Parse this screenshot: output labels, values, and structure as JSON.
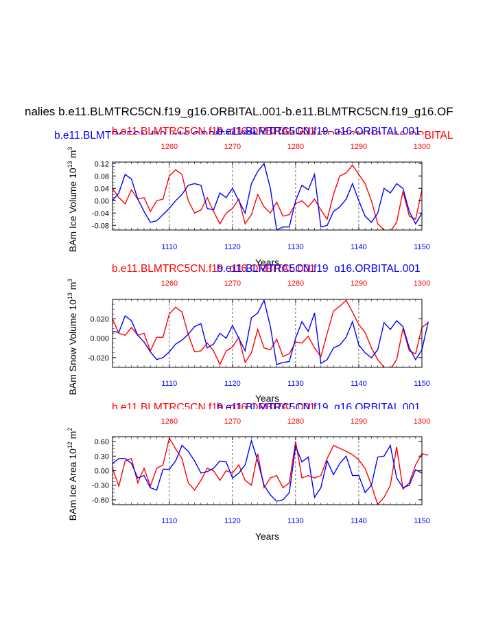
{
  "main_title": "nalies b.e11.BLMTRC5CN.f19_g16.ORBITAL.001-b.e11.BLMTRC5CN.f19_g16.OF",
  "super_title": {
    "blue": "b.e11.BLMTRC5CN.f19_g16.ORBITAL.001",
    "red": "b.e11.BLMTRC5CN.f19_g16.ORBITAL"
  },
  "colors": {
    "red_series": "#ff0000",
    "blue_series": "#0000ff",
    "axis": "#000000"
  },
  "chart_data": [
    {
      "type": "line",
      "title_red": "b.e11.BLMTRC5CN.f19_g16.ORBITAL.001",
      "title_blue": "b.e11.BLMTRC5CN.f19_g16.ORBITAL.001",
      "ylabel": "BAm Ice Volume 10",
      "ylabel_sup": "13",
      "ylabel_unit": "m",
      "ylabel_unit_sup": "3",
      "xlabel": "Years",
      "ylim": [
        -0.095,
        0.125
      ],
      "yticks": [
        -0.08,
        -0.04,
        0.0,
        0.04,
        0.08,
        0.12
      ],
      "ytick_labels": [
        "-0.08",
        "-0.04",
        "0.00",
        "0.04",
        "0.08",
        "0.12"
      ],
      "x_bottom": {
        "range": [
          1101,
          1150
        ],
        "ticks": [
          1110,
          1120,
          1130,
          1140,
          1150
        ]
      },
      "x_top": {
        "range": [
          1251,
          1300
        ],
        "ticks": [
          1260,
          1270,
          1280,
          1290,
          1300
        ]
      },
      "series": [
        {
          "color": "red",
          "axis": "top",
          "start": 1251,
          "values": [
            0.04,
            0.01,
            -0.01,
            0.035,
            0.005,
            0.01,
            -0.035,
            0.0,
            0.005,
            0.08,
            0.1,
            0.085,
            0.0,
            -0.04,
            -0.03,
            0.01,
            -0.035,
            -0.075,
            -0.04,
            -0.025,
            0.005,
            -0.075,
            -0.045,
            0.02,
            -0.02,
            -0.04,
            -0.005,
            -0.05,
            -0.045,
            -0.01,
            0.0,
            -0.02,
            0.005,
            -0.03,
            -0.06,
            0.02,
            0.08,
            0.09,
            0.115,
            0.085,
            0.055,
            0.0,
            -0.075,
            -0.095,
            -0.1,
            -0.07,
            0.03,
            -0.05,
            -0.06,
            0.035
          ]
        },
        {
          "color": "blue",
          "axis": "bottom",
          "start": 1101,
          "values": [
            0.0,
            0.025,
            0.085,
            0.07,
            0.005,
            -0.035,
            -0.07,
            -0.065,
            -0.045,
            -0.025,
            0.0,
            0.02,
            0.05,
            0.055,
            0.05,
            -0.025,
            -0.03,
            0.025,
            0.01,
            0.04,
            0.0,
            -0.04,
            0.055,
            0.095,
            0.12,
            0.04,
            -0.095,
            -0.085,
            -0.085,
            0.0,
            0.05,
            0.035,
            0.085,
            -0.085,
            -0.08,
            -0.035,
            -0.02,
            0.005,
            0.055,
            0.0,
            -0.05,
            -0.07,
            -0.04,
            0.04,
            0.025,
            0.055,
            0.04,
            -0.035,
            -0.075,
            -0.04
          ]
        }
      ]
    },
    {
      "type": "line",
      "title_red": "b.e11.BLMTRC5CN.f19_g16.ORBITAL.001",
      "title_blue": "b.e11.BLMTRC5CN.f19_g16.ORBITAL.001",
      "ylabel": "BAm Snow Volume 10",
      "ylabel_sup": "13",
      "ylabel_unit": "m",
      "ylabel_unit_sup": "3",
      "xlabel": "Years",
      "ylim": [
        -0.03,
        0.04
      ],
      "yticks": [
        -0.02,
        0.0,
        0.02
      ],
      "ytick_labels": [
        "-0.020",
        "0.000",
        "0.020"
      ],
      "x_bottom": {
        "range": [
          1101,
          1150
        ],
        "ticks": [
          1110,
          1120,
          1130,
          1140,
          1150
        ]
      },
      "x_top": {
        "range": [
          1251,
          1300
        ],
        "ticks": [
          1260,
          1270,
          1280,
          1290,
          1300
        ]
      },
      "series": [
        {
          "color": "red",
          "axis": "top",
          "start": 1251,
          "values": [
            0.02,
            0.005,
            0.003,
            0.011,
            0.003,
            0.005,
            -0.013,
            0.001,
            0.001,
            0.025,
            0.032,
            0.027,
            0.004,
            -0.014,
            -0.013,
            -0.005,
            -0.013,
            -0.027,
            -0.013,
            -0.009,
            0.001,
            -0.025,
            -0.015,
            0.009,
            -0.01,
            -0.012,
            -0.001,
            -0.019,
            -0.016,
            -0.004,
            -0.005,
            0.002,
            -0.01,
            -0.019,
            0.005,
            0.028,
            0.033,
            0.039,
            0.027,
            0.014,
            0.006,
            -0.01,
            -0.022,
            -0.03,
            -0.032,
            -0.022,
            0.01,
            -0.013,
            -0.016,
            0.011,
            0.016
          ]
        },
        {
          "color": "blue",
          "axis": "bottom",
          "start": 1101,
          "values": [
            0.007,
            0.006,
            0.023,
            0.018,
            0.003,
            -0.004,
            -0.014,
            -0.022,
            -0.02,
            -0.014,
            -0.006,
            -0.002,
            0.004,
            0.012,
            0.015,
            -0.01,
            -0.006,
            0.005,
            0.0,
            0.013,
            0.0,
            -0.013,
            0.021,
            0.026,
            0.039,
            0.012,
            -0.027,
            -0.025,
            -0.024,
            0.0,
            0.017,
            0.007,
            0.026,
            -0.026,
            -0.022,
            -0.01,
            -0.007,
            0.001,
            0.017,
            -0.007,
            -0.015,
            -0.02,
            -0.012,
            0.016,
            0.009,
            0.018,
            0.012,
            -0.01,
            -0.022,
            -0.012,
            0.017
          ]
        }
      ]
    },
    {
      "type": "line",
      "title_red": "b.e11.BLMTRC5CN.f19_g16.ORBITAL.001",
      "title_blue": "b.e11.BLMTRC5CN.f19_g16.ORBITAL.001",
      "ylabel": "BAm Ice Area 10",
      "ylabel_sup": "12",
      "ylabel_unit": "m",
      "ylabel_unit_sup": "2",
      "xlabel": "Years",
      "ylim": [
        -0.7,
        0.7
      ],
      "yticks": [
        -0.6,
        -0.3,
        0.0,
        0.3,
        0.6
      ],
      "ytick_labels": [
        "-0.60",
        "-0.30",
        "0.00",
        "0.30",
        "0.60"
      ],
      "x_bottom": {
        "range": [
          1101,
          1150
        ],
        "ticks": [
          1110,
          1120,
          1130,
          1140,
          1150
        ]
      },
      "x_top": {
        "range": [
          1251,
          1300
        ],
        "ticks": [
          1260,
          1270,
          1280,
          1290,
          1300
        ]
      },
      "series": [
        {
          "color": "red",
          "axis": "top",
          "start": 1251,
          "values": [
            0.05,
            -0.32,
            0.2,
            0.25,
            -0.25,
            0.05,
            -0.32,
            0.05,
            0.12,
            0.67,
            0.45,
            0.25,
            -0.25,
            -0.4,
            -0.2,
            0.05,
            0.0,
            -0.2,
            0.0,
            -0.05,
            0.12,
            -0.2,
            -0.3,
            0.35,
            -0.35,
            -0.15,
            -0.1,
            -0.35,
            -0.25,
            0.6,
            -0.15,
            -0.1,
            -0.15,
            -0.1,
            0.25,
            0.52,
            0.46,
            0.4,
            0.33,
            0.22,
            0.05,
            -0.3,
            -0.7,
            -0.55,
            -0.3,
            0.49,
            -0.38,
            -0.25,
            0.12,
            0.35,
            0.32
          ]
        },
        {
          "color": "blue",
          "axis": "bottom",
          "start": 1101,
          "values": [
            0.15,
            0.25,
            0.25,
            0.15,
            -0.15,
            -0.1,
            -0.35,
            -0.4,
            0.03,
            0.03,
            0.2,
            0.52,
            0.4,
            0.2,
            -0.05,
            -0.02,
            0.05,
            0.2,
            0.18,
            -0.15,
            -0.05,
            0.12,
            0.62,
            0.2,
            -0.3,
            -0.5,
            -0.63,
            -0.6,
            -0.45,
            0.5,
            0.18,
            0.28,
            -0.55,
            -0.35,
            0.2,
            -0.08,
            0.15,
            0.3,
            -0.1,
            -0.1,
            -0.45,
            -0.3,
            0.28,
            0.3,
            0.52,
            -0.15,
            -0.35,
            -0.3,
            0.02,
            -0.05
          ]
        }
      ]
    }
  ]
}
